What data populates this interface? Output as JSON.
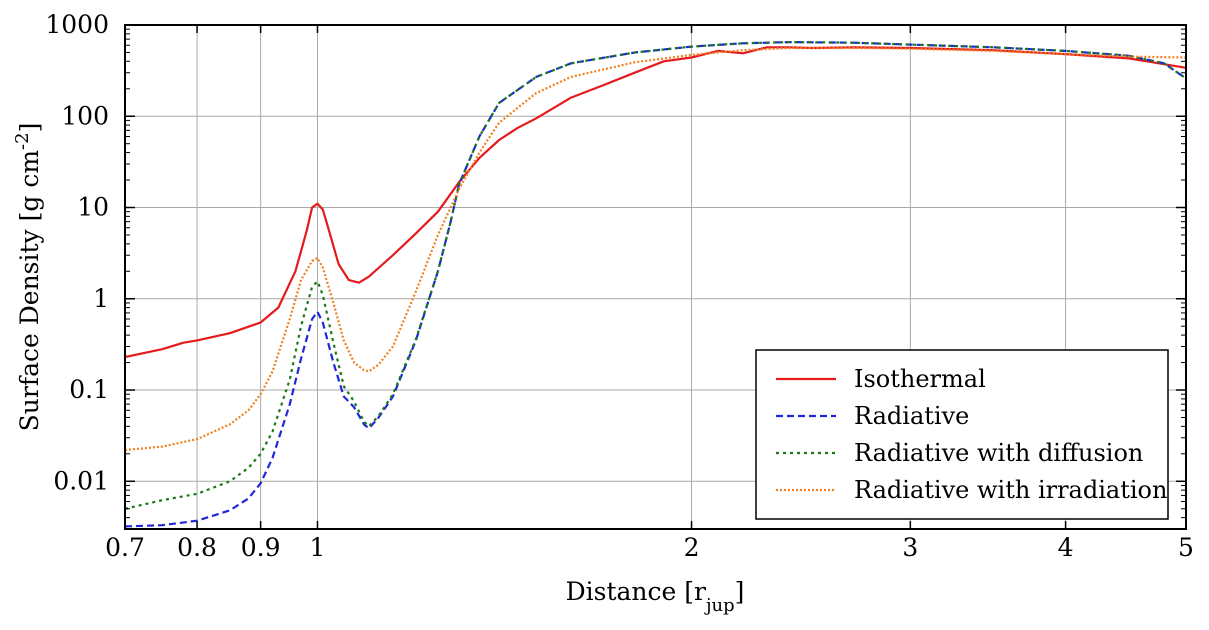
{
  "chart_data": {
    "type": "line",
    "xlabel": "Distance [r",
    "xlabel_sub": "jup",
    "xlabel_end": "]",
    "ylabel": "Surface Density [g cm",
    "ylabel_sup": "-2",
    "ylabel_end": "]",
    "xscale": "log",
    "yscale": "log",
    "xlim": [
      0.7,
      5
    ],
    "ylim": [
      0.003,
      1000
    ],
    "grid": true,
    "legend_position": "bottom-right",
    "xticks": [
      {
        "value": 0.7,
        "label": "0.7"
      },
      {
        "value": 0.8,
        "label": "0.8"
      },
      {
        "value": 0.9,
        "label": "0.9"
      },
      {
        "value": 1,
        "label": "1"
      },
      {
        "value": 2,
        "label": "2"
      },
      {
        "value": 3,
        "label": "3"
      },
      {
        "value": 4,
        "label": "4"
      },
      {
        "value": 5,
        "label": "5"
      }
    ],
    "yticks": [
      {
        "value": 0.01,
        "label": "0.01"
      },
      {
        "value": 0.1,
        "label": "0.1"
      },
      {
        "value": 1,
        "label": "1"
      },
      {
        "value": 10,
        "label": "10"
      },
      {
        "value": 100,
        "label": "100"
      },
      {
        "value": 1000,
        "label": "1000"
      }
    ],
    "series": [
      {
        "name": "Isothermal",
        "color": "#e41a1c",
        "dash": "solid",
        "x": [
          0.7,
          0.75,
          0.78,
          0.8,
          0.85,
          0.9,
          0.93,
          0.96,
          0.98,
          0.99,
          1.0,
          1.01,
          1.02,
          1.04,
          1.06,
          1.08,
          1.1,
          1.15,
          1.2,
          1.25,
          1.3,
          1.35,
          1.4,
          1.45,
          1.5,
          1.6,
          1.7,
          1.8,
          1.9,
          2.0,
          2.1,
          2.2,
          2.3,
          2.4,
          2.5,
          2.7,
          3.0,
          3.5,
          4.0,
          4.5,
          5.0
        ],
        "y": [
          0.23,
          0.28,
          0.33,
          0.35,
          0.42,
          0.55,
          0.8,
          2.0,
          5.5,
          10,
          11,
          9.5,
          6.0,
          2.4,
          1.6,
          1.5,
          1.75,
          3.0,
          5.2,
          9.0,
          19,
          35,
          55,
          75,
          95,
          160,
          220,
          300,
          400,
          440,
          520,
          490,
          570,
          570,
          560,
          570,
          560,
          530,
          480,
          430,
          340
        ]
      },
      {
        "name": "Radiative",
        "color": "#1f28d9",
        "dash": "dashed",
        "x": [
          0.7,
          0.75,
          0.8,
          0.85,
          0.88,
          0.9,
          0.92,
          0.95,
          0.97,
          0.99,
          1.0,
          1.01,
          1.03,
          1.05,
          1.07,
          1.09,
          1.1,
          1.12,
          1.15,
          1.2,
          1.25,
          1.28,
          1.3,
          1.35,
          1.4,
          1.5,
          1.6,
          1.8,
          2.0,
          2.2,
          2.4,
          2.7,
          3.0,
          3.5,
          4.0,
          4.5,
          4.8,
          5.0
        ],
        "y": [
          0.0032,
          0.0033,
          0.0037,
          0.0048,
          0.0065,
          0.0095,
          0.018,
          0.07,
          0.22,
          0.6,
          0.72,
          0.55,
          0.2,
          0.085,
          0.065,
          0.042,
          0.038,
          0.05,
          0.085,
          0.35,
          2.0,
          7.0,
          18,
          60,
          140,
          270,
          380,
          500,
          580,
          630,
          650,
          640,
          610,
          570,
          520,
          460,
          380,
          260
        ]
      },
      {
        "name": "Radiative with diffusion",
        "color": "#1a7a1a",
        "dash": "dotted",
        "x": [
          0.7,
          0.75,
          0.8,
          0.85,
          0.88,
          0.9,
          0.92,
          0.95,
          0.97,
          0.99,
          1.0,
          1.01,
          1.03,
          1.05,
          1.07,
          1.09,
          1.1,
          1.12,
          1.15,
          1.2,
          1.25,
          1.28,
          1.3,
          1.35,
          1.4,
          1.5,
          1.6,
          1.8,
          2.0,
          2.2,
          2.4,
          2.7,
          3.0,
          3.5,
          4.0,
          4.5,
          4.8,
          5.0
        ],
        "y": [
          0.005,
          0.0062,
          0.0073,
          0.01,
          0.014,
          0.02,
          0.035,
          0.13,
          0.5,
          1.35,
          1.55,
          1.1,
          0.33,
          0.11,
          0.075,
          0.045,
          0.04,
          0.052,
          0.09,
          0.36,
          2.0,
          7.0,
          18,
          60,
          140,
          270,
          380,
          500,
          580,
          630,
          650,
          640,
          610,
          570,
          520,
          460,
          380,
          260
        ]
      },
      {
        "name": "Radiative with irradiation",
        "color": "#f07f1e",
        "dash": "fine-dotted",
        "x": [
          0.7,
          0.75,
          0.8,
          0.85,
          0.88,
          0.9,
          0.92,
          0.95,
          0.97,
          0.99,
          1.0,
          1.01,
          1.03,
          1.05,
          1.07,
          1.09,
          1.1,
          1.12,
          1.15,
          1.2,
          1.25,
          1.28,
          1.3,
          1.35,
          1.4,
          1.5,
          1.6,
          1.8,
          2.0,
          2.2,
          2.4,
          2.7,
          3.0,
          3.5,
          4.0,
          4.5,
          5.0
        ],
        "y": [
          0.022,
          0.024,
          0.029,
          0.042,
          0.06,
          0.09,
          0.16,
          0.6,
          1.6,
          2.6,
          2.8,
          2.2,
          0.9,
          0.35,
          0.2,
          0.165,
          0.16,
          0.19,
          0.3,
          1.2,
          5.0,
          10,
          16,
          40,
          85,
          180,
          270,
          390,
          470,
          530,
          560,
          560,
          550,
          520,
          480,
          450,
          440
        ]
      }
    ]
  }
}
